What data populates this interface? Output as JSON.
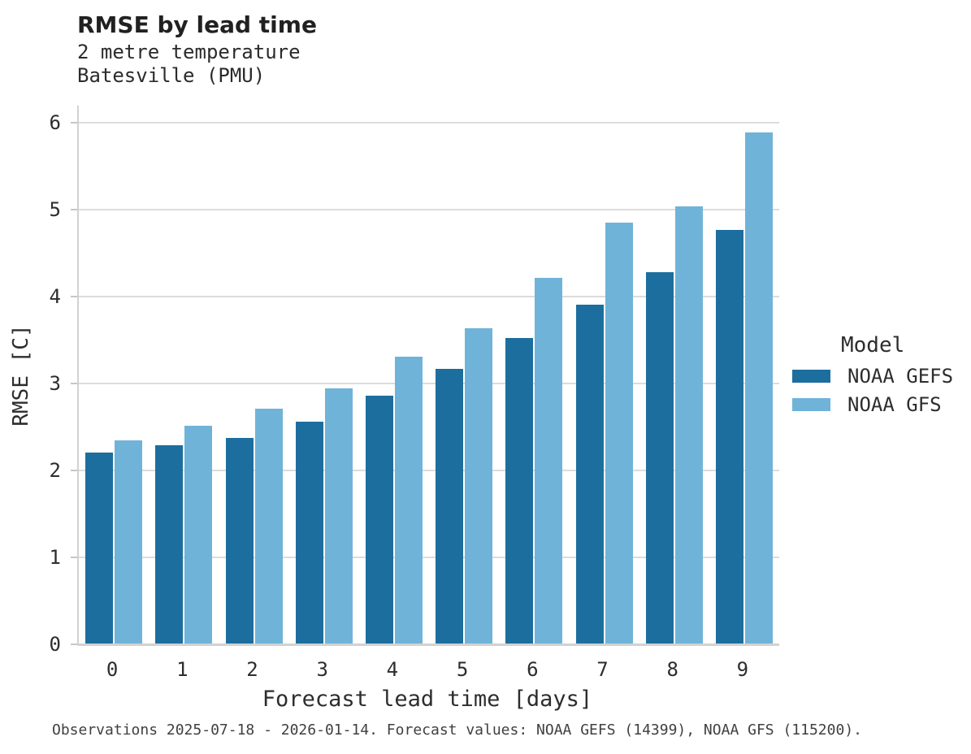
{
  "header": {
    "title": "RMSE by lead time",
    "subtitle_line1": "2 metre temperature",
    "subtitle_line2": "Batesville (PMU)"
  },
  "legend": {
    "title": "Model"
  },
  "footer": {
    "caption": "Observations 2025-07-18 - 2026-01-14. Forecast values: NOAA GEFS (14399), NOAA GFS (115200)."
  },
  "colors": {
    "gefs_dark_blue": "#1c6e9e",
    "gfs_light_blue": "#70b3d9",
    "gridline_gray": "#dcdcdc",
    "spine_gray": "#d2d2d2"
  },
  "chart_data": {
    "type": "bar",
    "title": "RMSE by lead time",
    "subtitle": [
      "2 metre temperature",
      "Batesville (PMU)"
    ],
    "xlabel": "Forecast lead time [days]",
    "ylabel": "RMSE [C]",
    "categories": [
      "0",
      "1",
      "2",
      "3",
      "4",
      "5",
      "6",
      "7",
      "8",
      "9"
    ],
    "series": [
      {
        "name": "NOAA GEFS",
        "color": "#1c6e9e",
        "values": [
          2.21,
          2.29,
          2.38,
          2.56,
          2.86,
          3.17,
          3.53,
          3.91,
          4.28,
          4.77
        ]
      },
      {
        "name": "NOAA GFS",
        "color": "#70b3d9",
        "values": [
          2.35,
          2.52,
          2.71,
          2.95,
          3.31,
          3.64,
          4.22,
          4.85,
          5.04,
          5.89
        ]
      }
    ],
    "ylim": [
      0,
      6.2
    ],
    "yticks": [
      0,
      1,
      2,
      3,
      4,
      5,
      6
    ],
    "grid": "horizontal",
    "legend_position": "right",
    "legend_title": "Model"
  }
}
